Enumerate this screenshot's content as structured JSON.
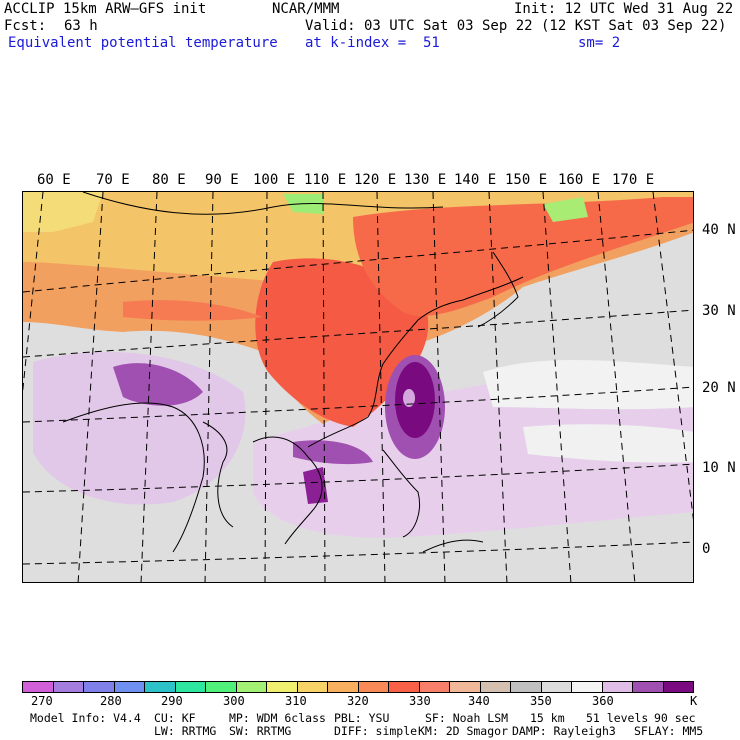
{
  "header": {
    "title": "ACCLIP 15km ARW–GFS init",
    "org": "NCAR/MMM",
    "init": "Init: 12 UTC Wed 31 Aug 22",
    "fcst_label": "Fcst:",
    "fcst_value": "63 h",
    "valid": "Valid: 03 UTC Sat 03 Sep 22 (12 KST Sat 03 Sep 22)",
    "field": "Equivalent potential temperature",
    "level": "at k-index =  51",
    "smoothing": "sm= 2"
  },
  "map": {
    "lon_labels": [
      "60 E",
      "70 E",
      "80 E",
      "90 E",
      "100 E",
      "110 E",
      "120 E",
      "130 E",
      "140 E",
      "150 E",
      "160 E",
      "170 E"
    ],
    "lat_labels": [
      "40 N",
      "30 N",
      "20 N",
      "10 N",
      "0"
    ]
  },
  "colorbar": {
    "unit": "K",
    "labels": [
      "270",
      "280",
      "290",
      "300",
      "310",
      "320",
      "330",
      "340",
      "350",
      "360"
    ],
    "colors": [
      "#d160d8",
      "#a57ddf",
      "#8080ea",
      "#6f90f0",
      "#2dc2c8",
      "#2ee6a0",
      "#50f07a",
      "#a4f074",
      "#f0f070",
      "#f8d468",
      "#f8b060",
      "#f88a58",
      "#f86048",
      "#f8806a",
      "#f0b898",
      "#d4c0b0",
      "#c0c0c0",
      "#dcdcdc",
      "#f4f4f4",
      "#e0bde6",
      "#a050b0",
      "#7a0a80"
    ]
  },
  "footer": {
    "line1": [
      "Model Info: V4.4",
      "CU: KF",
      "MP: WDM 6class",
      "PBL: YSU",
      "SF: Noah LSM",
      "15 km",
      "51 levels",
      "90 sec"
    ],
    "line2": [
      "LW: RRTMG",
      "SW: RRTMG",
      "DIFF: simple",
      "KM: 2D Smagor",
      "DAMP: Rayleigh3",
      "SFLAY: MM5"
    ]
  }
}
